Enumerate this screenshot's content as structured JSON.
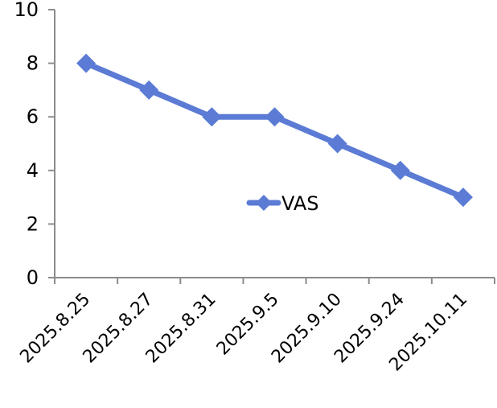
{
  "chart_data": {
    "type": "line",
    "title": "",
    "xlabel": "",
    "ylabel": "",
    "categories": [
      "2025.8.25",
      "2025.8.27",
      "2025.8.31",
      "2025.9.5",
      "2025.9.10",
      "2025.9.24",
      "2025.10.11"
    ],
    "series": [
      {
        "name": "VAS",
        "values": [
          8,
          7,
          6,
          6,
          5,
          4,
          3
        ],
        "color": "#5B7BD5",
        "marker": "diamond"
      }
    ],
    "ylim": [
      0,
      10
    ],
    "yticks": [
      "0",
      "2",
      "4",
      "6",
      "8",
      "10"
    ],
    "grid": false,
    "legend_position": "inside-center-right"
  }
}
